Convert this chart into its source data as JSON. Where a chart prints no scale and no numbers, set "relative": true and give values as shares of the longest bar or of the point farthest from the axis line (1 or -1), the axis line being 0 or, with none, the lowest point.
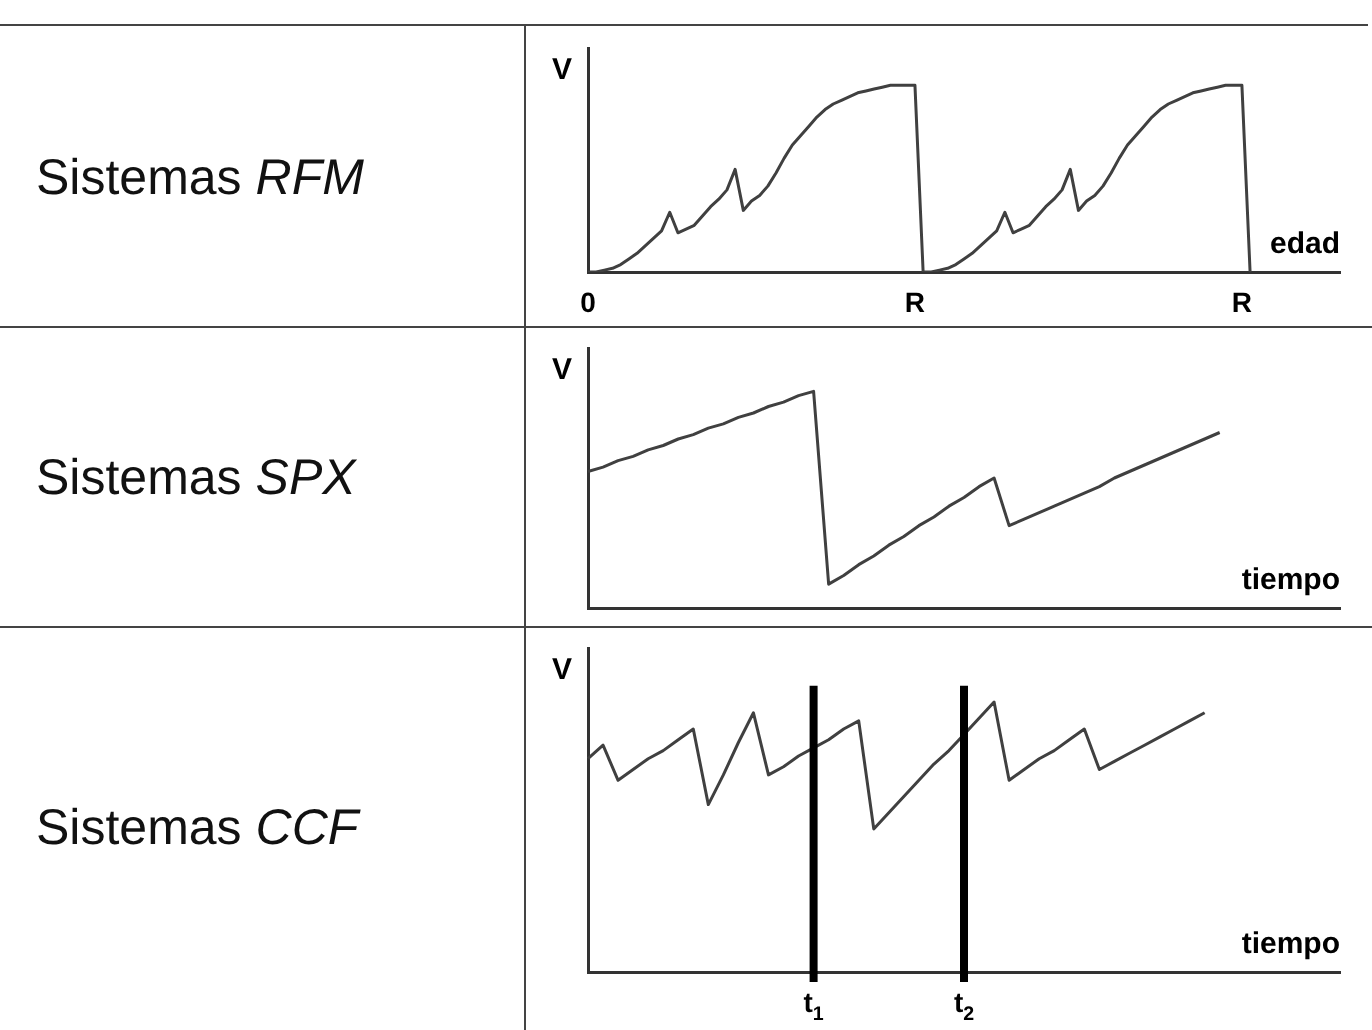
{
  "chart_data": [
    {
      "type": "line",
      "title": "Sistemas RFM",
      "ylabel": "V",
      "xlabel": "edad",
      "relative": true,
      "grid": false,
      "legend": false,
      "marker": "none",
      "tick_labels": "x",
      "categories": [
        "0",
        null,
        null,
        null,
        null,
        null,
        null,
        null,
        null,
        null,
        null,
        null,
        null,
        null,
        null,
        null,
        null,
        null,
        null,
        null,
        null,
        null,
        null,
        null,
        null,
        null,
        null,
        null,
        null,
        null,
        null,
        null,
        null,
        null,
        null,
        null,
        null,
        null,
        null,
        null,
        "R",
        null,
        null,
        null,
        null,
        null,
        null,
        null,
        null,
        null,
        null,
        null,
        null,
        null,
        null,
        null,
        null,
        null,
        null,
        null,
        null,
        null,
        null,
        null,
        null,
        null,
        null,
        null,
        null,
        null,
        null,
        null,
        null,
        null,
        null,
        null,
        null,
        null,
        null,
        null,
        "R",
        null,
        null,
        null,
        null,
        null,
        null,
        null,
        null,
        null,
        null,
        null,
        null
      ],
      "series": [
        {
          "color": "#404040",
          "values": [
            0,
            0,
            0.01,
            0.02,
            0.04,
            0.07,
            0.1,
            0.14,
            0.18,
            0.22,
            0.32,
            0.21,
            0.23,
            0.25,
            0.3,
            0.35,
            0.39,
            0.44,
            0.55,
            0.33,
            0.38,
            0.41,
            0.46,
            0.53,
            0.61,
            0.68,
            0.73,
            0.78,
            0.83,
            0.87,
            0.9,
            0.92,
            0.94,
            0.96,
            0.97,
            0.98,
            0.99,
            1,
            1,
            1,
            1,
            0,
            0,
            0.01,
            0.02,
            0.04,
            0.07,
            0.1,
            0.14,
            0.18,
            0.22,
            0.32,
            0.21,
            0.23,
            0.25,
            0.3,
            0.35,
            0.39,
            0.44,
            0.55,
            0.33,
            0.38,
            0.41,
            0.46,
            0.53,
            0.61,
            0.68,
            0.73,
            0.78,
            0.83,
            0.87,
            0.9,
            0.92,
            0.94,
            0.96,
            0.97,
            0.98,
            0.99,
            1,
            1,
            1,
            0,
            null,
            null,
            null,
            null,
            null,
            null,
            null,
            null,
            null,
            null,
            null
          ]
        }
      ]
    },
    {
      "type": "line",
      "title": "Sistemas SPX",
      "ylabel": "V",
      "xlabel": "tiempo",
      "relative": true,
      "grid": false,
      "legend": false,
      "marker": "none",
      "tick_labels": false,
      "categories": [
        null,
        null,
        null,
        null,
        null,
        null,
        null,
        null,
        null,
        null,
        null,
        null,
        null,
        null,
        null,
        null,
        null,
        null,
        null,
        null,
        null,
        null,
        null,
        null,
        null,
        null,
        null,
        null,
        null,
        null,
        null,
        null,
        null,
        null,
        null,
        null,
        null,
        null,
        null,
        null,
        null,
        null,
        null,
        null,
        null,
        null,
        null,
        null,
        null,
        null,
        null
      ],
      "series": [
        {
          "color": "#404040",
          "values": [
            0.63,
            0.65,
            0.68,
            0.7,
            0.73,
            0.75,
            0.78,
            0.8,
            0.83,
            0.85,
            0.88,
            0.9,
            0.93,
            0.95,
            0.98,
            1,
            0.11,
            0.15,
            0.2,
            0.24,
            0.29,
            0.33,
            0.38,
            0.42,
            0.47,
            0.51,
            0.56,
            0.6,
            0.38,
            0.41,
            0.44,
            0.47,
            0.5,
            0.53,
            0.56,
            0.6,
            0.63,
            0.66,
            0.69,
            0.72,
            0.75,
            0.78,
            0.81,
            null,
            null,
            null,
            null,
            null,
            null,
            null,
            null
          ]
        }
      ]
    },
    {
      "type": "line",
      "title": "Sistemas CCF",
      "ylabel": "V",
      "xlabel": "tiempo",
      "relative": true,
      "grid": false,
      "legend": false,
      "marker": "none",
      "tick_labels": "x",
      "categories": [
        null,
        null,
        null,
        null,
        null,
        null,
        null,
        null,
        null,
        null,
        null,
        null,
        null,
        null,
        null,
        "t$_{1}$",
        null,
        null,
        null,
        null,
        null,
        null,
        null,
        null,
        null,
        "t$_{2}$",
        null,
        null,
        null,
        null,
        null,
        null,
        null,
        null,
        null,
        null,
        null,
        null,
        null,
        null,
        null,
        null,
        null,
        null,
        null,
        null,
        null,
        null,
        null,
        null,
        null
      ],
      "series": [
        {
          "color": "#404040",
          "values": [
            0.79,
            0.84,
            0.71,
            0.75,
            0.79,
            0.82,
            0.86,
            0.9,
            0.62,
            0.73,
            0.85,
            0.96,
            0.73,
            0.76,
            0.8,
            0.83,
            0.86,
            0.9,
            0.93,
            0.53,
            0.59,
            0.65,
            0.71,
            0.77,
            0.82,
            0.88,
            0.94,
            1,
            0.71,
            0.75,
            0.79,
            0.82,
            0.86,
            0.9,
            0.75,
            0.78,
            0.81,
            0.84,
            0.87,
            0.9,
            0.93,
            0.96,
            null,
            null,
            null,
            null,
            null,
            null,
            null,
            null,
            null
          ]
        }
      ],
      "ref_lines": [
        {
          "axis": "x",
          "value": "t$_{1}$",
          "color": "#000000"
        },
        {
          "axis": "x",
          "value": "t$_{2}$",
          "color": "#000000"
        }
      ]
    }
  ]
}
